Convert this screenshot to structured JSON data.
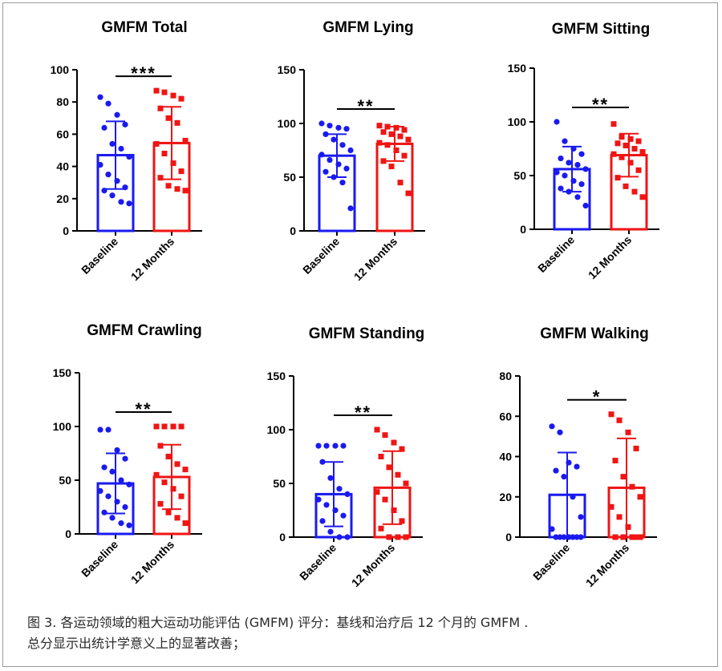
{
  "caption": {
    "line1": "图 3. 各运动领域的粗大运动功能评估 (GMFM) 评分：基线和治疗后 12 个月的 GMFM .",
    "line2": "总分显示出统计学意义上的显著改善；"
  },
  "colors": {
    "baseline": "#1a1af0",
    "months12": "#f01414",
    "axis": "#000000"
  },
  "chart_data": [
    {
      "type": "bar",
      "title": "GMFM Total",
      "categories": [
        "Baseline",
        "12 Months"
      ],
      "ylim": [
        0,
        100
      ],
      "yticks": [
        0,
        20,
        40,
        60,
        80,
        100
      ],
      "series": [
        {
          "name": "Baseline",
          "mean": 47,
          "sd": 21,
          "points": [
            83,
            79,
            72,
            66,
            64,
            54,
            51,
            46,
            41,
            35,
            31,
            27,
            25,
            22,
            18,
            17
          ]
        },
        {
          "name": "12 Months",
          "mean": 54.5,
          "sd": 22.5,
          "points": [
            87,
            86,
            84,
            82,
            76,
            70,
            67,
            56,
            54,
            48,
            42,
            37,
            33,
            28,
            26,
            25
          ]
        }
      ],
      "significance": "***"
    },
    {
      "type": "bar",
      "title": "GMFM Lying",
      "categories": [
        "Baseline",
        "12 Months"
      ],
      "ylim": [
        0,
        150
      ],
      "yticks": [
        0,
        50,
        100,
        150
      ],
      "series": [
        {
          "name": "Baseline",
          "mean": 70,
          "sd": 20,
          "points": [
            100,
            98,
            96,
            95,
            90,
            85,
            80,
            75,
            71,
            66,
            62,
            58,
            55,
            50,
            45,
            21
          ]
        },
        {
          "name": "12 Months",
          "mean": 81,
          "sd": 16,
          "points": [
            98,
            97,
            96,
            94,
            92,
            90,
            88,
            85,
            82,
            80,
            75,
            70,
            65,
            60,
            45,
            35
          ]
        }
      ],
      "significance": "**"
    },
    {
      "type": "bar",
      "title": "GMFM Sitting",
      "categories": [
        "Baseline",
        "12 Months"
      ],
      "ylim": [
        0,
        150
      ],
      "yticks": [
        0,
        50,
        100,
        150
      ],
      "series": [
        {
          "name": "Baseline",
          "mean": 56,
          "sd": 21,
          "points": [
            100,
            82,
            75,
            70,
            66,
            62,
            60,
            56,
            53,
            50,
            45,
            42,
            38,
            35,
            30,
            22
          ]
        },
        {
          "name": "12 Months",
          "mean": 69,
          "sd": 20,
          "points": [
            98,
            86,
            84,
            82,
            80,
            78,
            75,
            72,
            70,
            67,
            62,
            55,
            48,
            40,
            35,
            30
          ]
        }
      ],
      "significance": "**"
    },
    {
      "type": "bar",
      "title": "GMFM Crawling",
      "categories": [
        "Baseline",
        "12 Months"
      ],
      "ylim": [
        0,
        150
      ],
      "yticks": [
        0,
        50,
        100,
        150
      ],
      "series": [
        {
          "name": "Baseline",
          "mean": 47,
          "sd": 28,
          "points": [
            97,
            97,
            78,
            70,
            62,
            58,
            50,
            46,
            40,
            35,
            30,
            25,
            20,
            15,
            10,
            8
          ]
        },
        {
          "name": "12 Months",
          "mean": 53,
          "sd": 30,
          "points": [
            100,
            100,
            100,
            100,
            82,
            72,
            65,
            60,
            55,
            48,
            42,
            35,
            28,
            20,
            15,
            10
          ]
        }
      ],
      "significance": "**"
    },
    {
      "type": "bar",
      "title": "GMFM Standing",
      "categories": [
        "Baseline",
        "12 Months"
      ],
      "ylim": [
        0,
        150
      ],
      "yticks": [
        0,
        50,
        100,
        150
      ],
      "series": [
        {
          "name": "Baseline",
          "mean": 40,
          "sd": 30,
          "points": [
            85,
            85,
            85,
            85,
            70,
            55,
            45,
            40,
            35,
            30,
            25,
            20,
            15,
            5,
            0,
            0
          ]
        },
        {
          "name": "12 Months",
          "mean": 46,
          "sd": 34,
          "points": [
            100,
            95,
            88,
            82,
            75,
            65,
            58,
            50,
            42,
            35,
            25,
            15,
            8,
            0,
            0,
            0
          ]
        }
      ],
      "significance": "**"
    },
    {
      "type": "bar",
      "title": "GMFM Walking",
      "categories": [
        "Baseline",
        "12 Months"
      ],
      "ylim": [
        0,
        80
      ],
      "yticks": [
        0,
        20,
        40,
        60,
        80
      ],
      "series": [
        {
          "name": "Baseline",
          "mean": 21,
          "sd": 21,
          "points": [
            55,
            52,
            37,
            35,
            33,
            30,
            20,
            10,
            4,
            0,
            0,
            0,
            0,
            0,
            0,
            0
          ]
        },
        {
          "name": "12 Months",
          "mean": 24.5,
          "sd": 24.5,
          "points": [
            61,
            58,
            52,
            44,
            38,
            30,
            25,
            20,
            15,
            10,
            5,
            0,
            0,
            0,
            0,
            0
          ]
        }
      ],
      "significance": "*"
    }
  ]
}
